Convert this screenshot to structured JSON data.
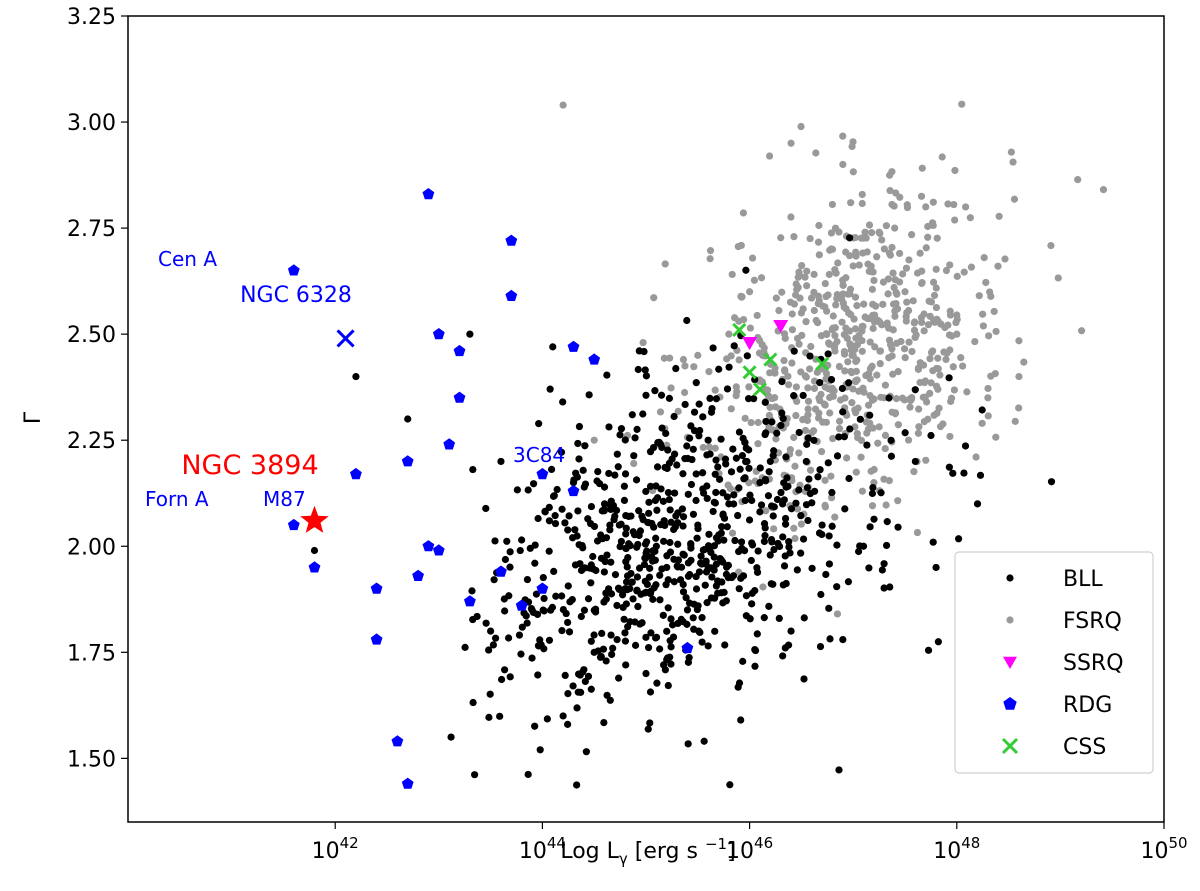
{
  "chart_data": {
    "type": "scatter",
    "title": "",
    "xlabel": "Log L",
    "xlabel_sub": "γ",
    "xlabel_unit": " [erg s ",
    "xlabel_sup": "−1",
    "xlabel_end": "]",
    "ylabel": "Γ",
    "x_scale": "log10",
    "xlim": [
      40.0,
      50.0
    ],
    "ylim": [
      1.35,
      3.25
    ],
    "x_ticks": [
      {
        "value": 42,
        "base": "10",
        "exp": "42"
      },
      {
        "value": 44,
        "base": "10",
        "exp": "44"
      },
      {
        "value": 46,
        "base": "10",
        "exp": "46"
      },
      {
        "value": 48,
        "base": "10",
        "exp": "48"
      },
      {
        "value": 50,
        "base": "10",
        "exp": "50"
      }
    ],
    "y_ticks": [
      {
        "value": 1.5,
        "label": "1.50"
      },
      {
        "value": 1.75,
        "label": "1.75"
      },
      {
        "value": 2.0,
        "label": "2.00"
      },
      {
        "value": 2.25,
        "label": "2.25"
      },
      {
        "value": 2.5,
        "label": "2.50"
      },
      {
        "value": 2.75,
        "label": "2.75"
      },
      {
        "value": 3.0,
        "label": "3.00"
      },
      {
        "value": 3.25,
        "label": "3.25"
      }
    ],
    "legend_position": "bottom-right",
    "series": [
      {
        "name": "BLL",
        "marker": "circle",
        "color": "#000000",
        "approx_count": 780,
        "x": [
          41.8,
          42.2,
          42.7,
          43.3,
          43.6,
          44.1,
          44.3,
          44.8,
          45.2,
          45.5,
          45.8,
          46.2,
          46.7,
          47.1,
          47.6,
          48.2,
          43.9,
          44.5,
          45.0,
          45.4,
          45.9,
          46.4,
          44.6,
          45.1,
          45.6,
          46.1,
          44.2,
          43.5,
          46.9,
          47.8
        ],
        "y": [
          1.99,
          2.4,
          2.3,
          2.5,
          2.2,
          2.47,
          2.15,
          1.9,
          1.95,
          2.05,
          2.1,
          2.2,
          2.05,
          2.0,
          2.2,
          2.1,
          1.85,
          1.75,
          1.7,
          1.85,
          1.9,
          1.8,
          2.1,
          2.0,
          2.25,
          2.15,
          1.6,
          1.8,
          1.78,
          1.95
        ]
      },
      {
        "name": "FSRQ",
        "marker": "circle",
        "color": "#999999",
        "approx_count": 680,
        "x": [
          45.5,
          46.0,
          46.5,
          47.0,
          47.5,
          48.0,
          46.8,
          47.3,
          46.2,
          47.7,
          48.3,
          45.8,
          46.9,
          47.2,
          44.5,
          47.9,
          48.6,
          46.4,
          47.4,
          44.2
        ],
        "y": [
          2.45,
          2.6,
          2.55,
          2.45,
          2.6,
          2.5,
          2.7,
          2.35,
          2.3,
          2.8,
          2.35,
          2.5,
          2.9,
          2.15,
          2.25,
          2.65,
          2.4,
          2.95,
          2.75,
          3.04
        ]
      },
      {
        "name": "SSRQ",
        "marker": "triangle-down",
        "color": "#ff00ff",
        "x": [
          46.0,
          46.3
        ],
        "y": [
          2.48,
          2.52
        ]
      },
      {
        "name": "RDG",
        "marker": "pentagon",
        "color": "#0000ff",
        "x": [
          41.6,
          41.6,
          41.8,
          42.2,
          42.4,
          42.4,
          42.6,
          42.7,
          42.7,
          42.8,
          42.9,
          42.9,
          43.0,
          43.0,
          43.1,
          43.2,
          43.2,
          43.3,
          43.6,
          43.7,
          43.7,
          43.8,
          44.0,
          44.0,
          44.3,
          44.3,
          44.5,
          45.4
        ],
        "y": [
          2.65,
          2.05,
          1.95,
          2.17,
          1.9,
          1.78,
          1.54,
          2.2,
          1.44,
          1.93,
          2.83,
          2.0,
          2.5,
          1.99,
          2.24,
          2.46,
          2.35,
          1.87,
          1.94,
          2.72,
          2.59,
          1.86,
          2.17,
          1.9,
          2.47,
          2.13,
          2.44,
          1.76
        ]
      },
      {
        "name": "CSS",
        "marker": "x",
        "color": "#33cc33",
        "x": [
          45.9,
          46.0,
          46.1,
          46.2,
          46.7
        ],
        "y": [
          2.51,
          2.41,
          2.37,
          2.44,
          2.43
        ]
      }
    ],
    "highlights": [
      {
        "name": "NGC 3894",
        "marker": "star",
        "color": "#ff0000",
        "x": 41.8,
        "y": 2.06
      }
    ],
    "extra_markers": [
      {
        "name": "NGC 6328",
        "marker": "x",
        "color": "#0000ff",
        "x": 42.1,
        "y": 2.49
      }
    ],
    "annotations": [
      {
        "text": "Cen A",
        "color": "#0000ff"
      },
      {
        "text": "NGC 6328",
        "color": "#0000ff"
      },
      {
        "text": "NGC 3894",
        "color": "#ff0000"
      },
      {
        "text": "Forn A",
        "color": "#0000ff"
      },
      {
        "text": "M87",
        "color": "#0000ff"
      },
      {
        "text": "3C84",
        "color": "#0000ff"
      }
    ]
  }
}
